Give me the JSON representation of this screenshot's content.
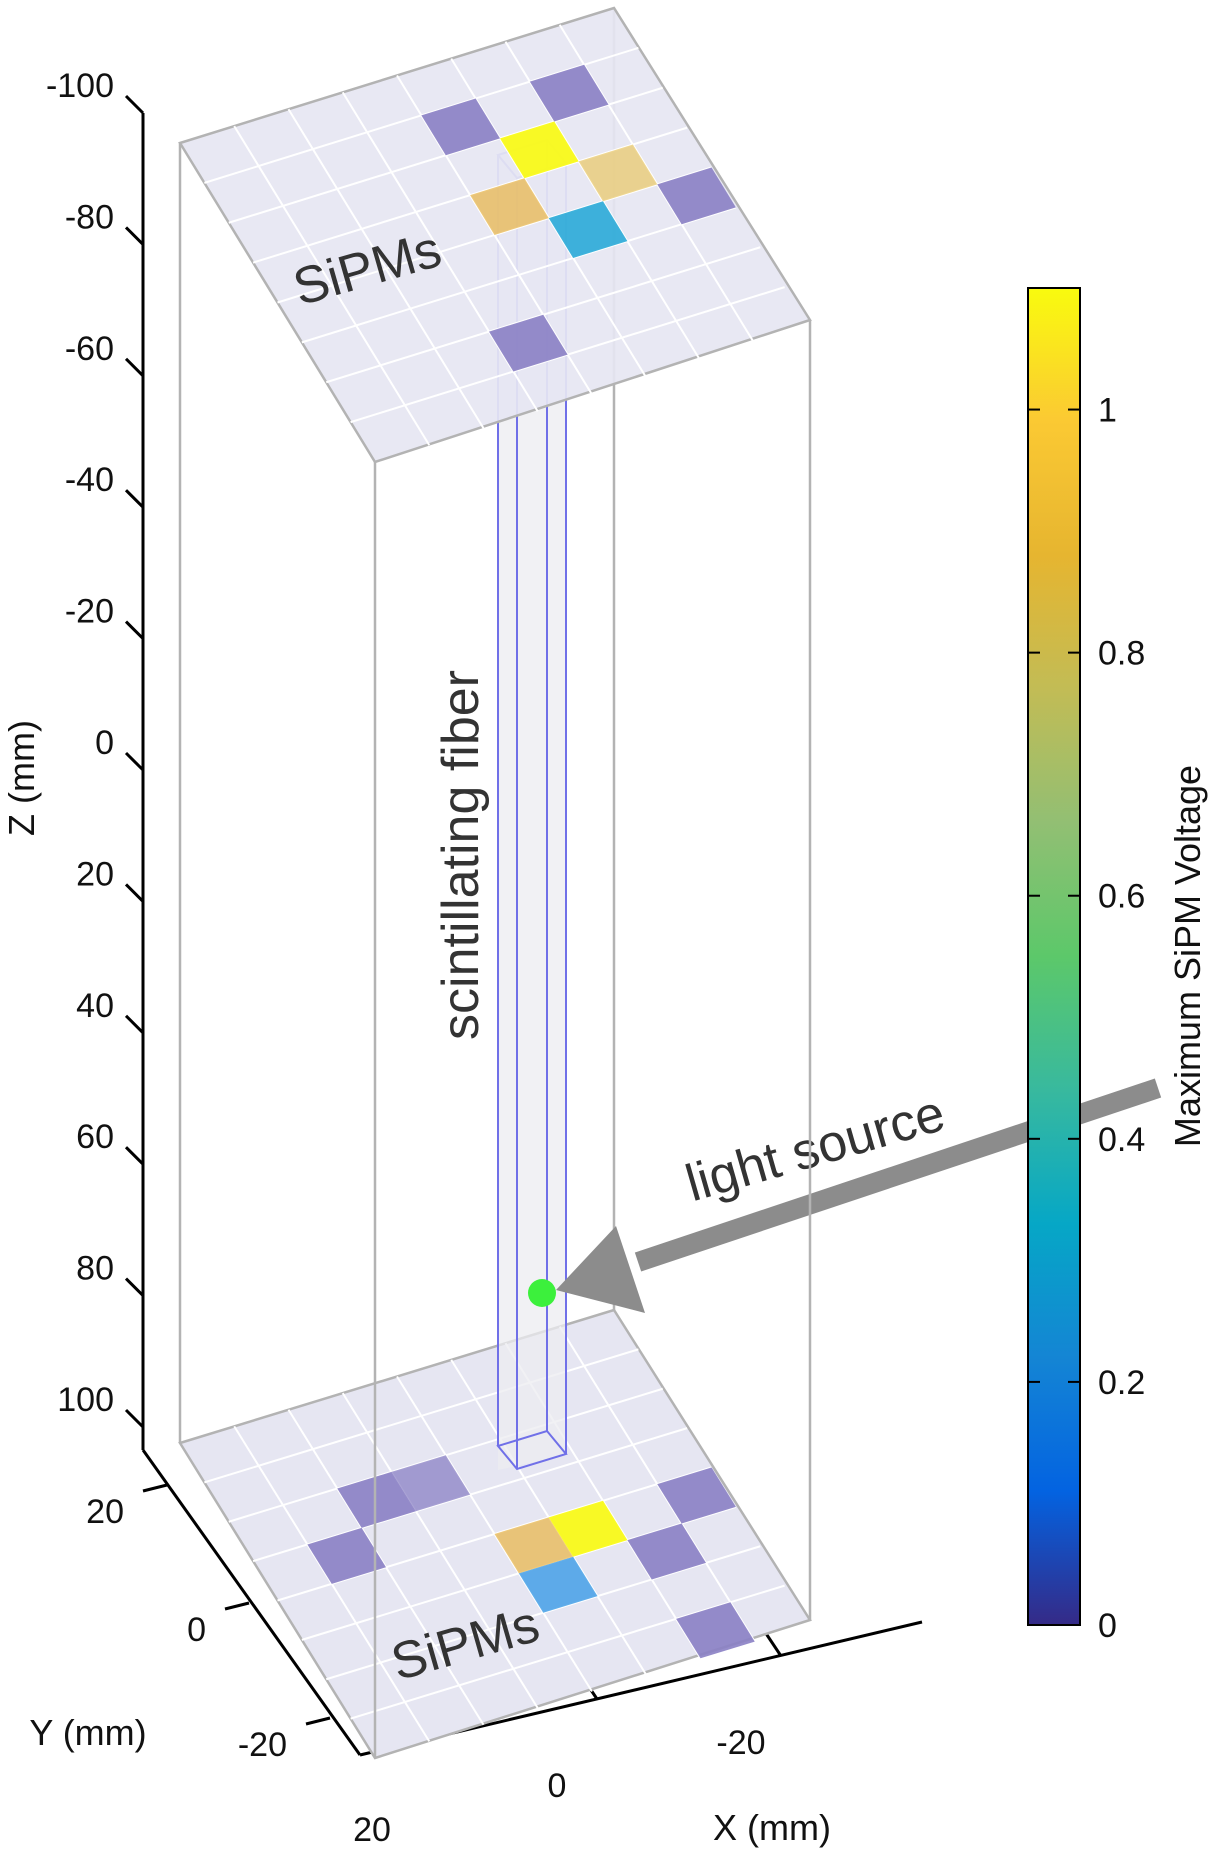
{
  "axes": {
    "z": {
      "label": "Z (mm)",
      "ticks": [
        "-100",
        "-80",
        "-60",
        "-40",
        "-20",
        "0",
        "20",
        "40",
        "60",
        "80",
        "100"
      ]
    },
    "y": {
      "label": "Y (mm)",
      "ticks": [
        "20",
        "0",
        "-20"
      ]
    },
    "x": {
      "label": "X (mm)",
      "ticks": [
        "20",
        "0",
        "-20"
      ]
    }
  },
  "annotations": {
    "top_plane": "SiPMs",
    "bottom_plane": "SiPMs",
    "fiber": "scintillating fiber",
    "source": "light source"
  },
  "colorbar": {
    "label": "Maximum SiPM Voltage",
    "ticks": [
      "0",
      "0.2",
      "0.4",
      "0.6",
      "0.8",
      "1"
    ],
    "tick_values": [
      0,
      0.2,
      0.4,
      0.6,
      0.8,
      1
    ],
    "range": [
      0,
      1.1
    ],
    "colormap": "parula"
  },
  "colors": {
    "plane": "#e6e6f2",
    "plane_grid": "#ffffff",
    "box_edge": "#b3b3b3",
    "fiber_edge": "#7070e8",
    "light_source": "#3cf03c",
    "arrow": "#8c8c8c",
    "sipm_low": "#8a80c4"
  }
}
